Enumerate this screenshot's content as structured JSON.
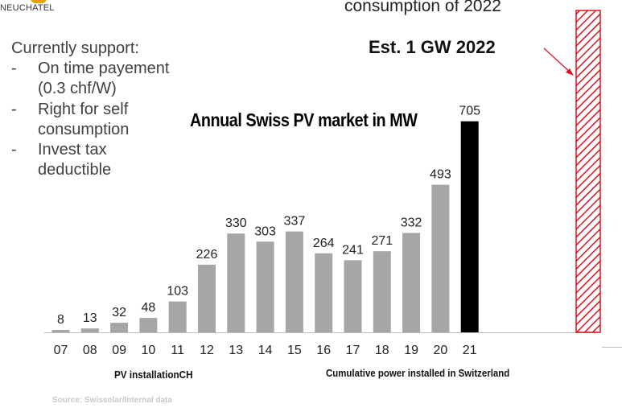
{
  "logo": {
    "text": "NEUCHATEL"
  },
  "top_caption": "consumption of 2022",
  "estimate_label": "Est. 1 GW 2022",
  "support": {
    "heading": "Currently support:",
    "items": [
      "On time payement (0.3 chf/W)",
      "Right for self consumption",
      "Invest tax deductible"
    ]
  },
  "footer": {
    "left_label": "PV installationCH",
    "right_label": "Cumulative power installed in Switzerland",
    "source": "Source: Swissolar/Internal data"
  },
  "colors": {
    "bar": "#a6a6a6",
    "highlight": "#000000",
    "estimate": "#e0101f",
    "arrow": "#e0101f"
  },
  "chart_data": {
    "type": "bar",
    "title": "Annual Swiss PV market in MW",
    "categories": [
      "07",
      "08",
      "09",
      "10",
      "11",
      "12",
      "13",
      "14",
      "15",
      "16",
      "17",
      "18",
      "19",
      "20",
      "21"
    ],
    "values": [
      8,
      13,
      32,
      48,
      103,
      226,
      330,
      303,
      337,
      264,
      241,
      271,
      332,
      493,
      705
    ],
    "highlight_category": "21",
    "estimate": {
      "value": 1000,
      "pattern": "red diagonal hatch",
      "labelled_by": "Est. 1 GW 2022"
    },
    "ylim": [
      0,
      1000
    ]
  }
}
